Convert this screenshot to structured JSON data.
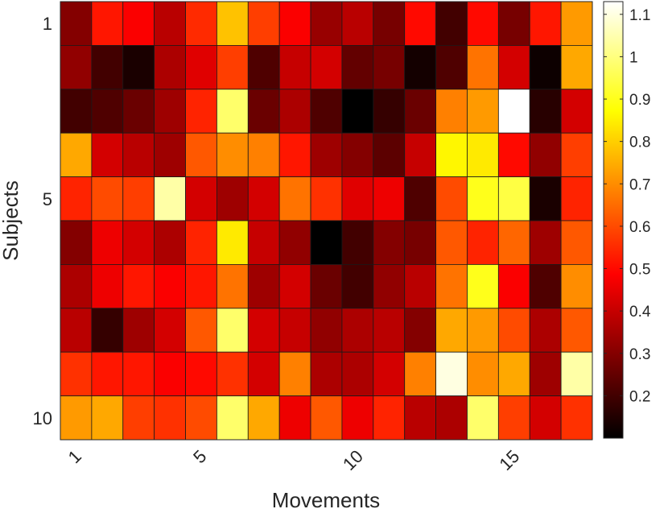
{
  "chart_data": {
    "type": "heatmap",
    "title": "",
    "xlabel": "Movements",
    "ylabel": "Subjects",
    "x_ticks": [
      1,
      5,
      10,
      15
    ],
    "y_ticks": [
      1,
      5,
      10
    ],
    "n_cols": 17,
    "n_rows": 10,
    "colormap": "hot",
    "clim": [
      0.1,
      1.13
    ],
    "colorbar_ticks": [
      0.2,
      0.3,
      0.4,
      0.5,
      0.6,
      0.7,
      0.8,
      0.9,
      1,
      1.1
    ],
    "grid": true,
    "values": [
      [
        0.3,
        0.52,
        0.48,
        0.38,
        0.55,
        0.78,
        0.58,
        0.48,
        0.33,
        0.38,
        0.28,
        0.5,
        0.2,
        0.5,
        0.28,
        0.52,
        0.72
      ],
      [
        0.32,
        0.2,
        0.14,
        0.36,
        0.44,
        0.58,
        0.22,
        0.4,
        0.42,
        0.25,
        0.28,
        0.13,
        0.22,
        0.66,
        0.42,
        0.12,
        0.74
      ],
      [
        0.2,
        0.22,
        0.26,
        0.34,
        0.54,
        0.98,
        0.26,
        0.36,
        0.22,
        0.1,
        0.18,
        0.26,
        0.68,
        0.72,
        1.13,
        0.16,
        0.42
      ],
      [
        0.74,
        0.42,
        0.38,
        0.34,
        0.62,
        0.7,
        0.68,
        0.52,
        0.34,
        0.3,
        0.24,
        0.4,
        0.86,
        0.84,
        0.5,
        0.32,
        0.58
      ],
      [
        0.54,
        0.6,
        0.58,
        1.04,
        0.42,
        0.34,
        0.42,
        0.66,
        0.56,
        0.44,
        0.46,
        0.22,
        0.6,
        0.9,
        0.94,
        0.14,
        0.54
      ],
      [
        0.3,
        0.46,
        0.42,
        0.36,
        0.54,
        0.84,
        0.4,
        0.32,
        0.1,
        0.2,
        0.3,
        0.28,
        0.62,
        0.54,
        0.64,
        0.34,
        0.62
      ],
      [
        0.36,
        0.46,
        0.52,
        0.48,
        0.52,
        0.66,
        0.34,
        0.42,
        0.26,
        0.2,
        0.32,
        0.38,
        0.66,
        0.9,
        0.48,
        0.22,
        0.7
      ],
      [
        0.38,
        0.18,
        0.34,
        0.42,
        0.62,
        0.98,
        0.42,
        0.4,
        0.32,
        0.36,
        0.38,
        0.3,
        0.74,
        0.72,
        0.6,
        0.36,
        0.62
      ],
      [
        0.56,
        0.52,
        0.52,
        0.48,
        0.5,
        0.56,
        0.42,
        0.68,
        0.36,
        0.36,
        0.42,
        0.68,
        1.1,
        0.7,
        0.74,
        0.34,
        1.04
      ],
      [
        0.72,
        0.74,
        0.58,
        0.56,
        0.6,
        0.98,
        0.74,
        0.46,
        0.62,
        0.46,
        0.54,
        0.38,
        0.36,
        0.98,
        0.58,
        0.42,
        0.56
      ]
    ]
  }
}
